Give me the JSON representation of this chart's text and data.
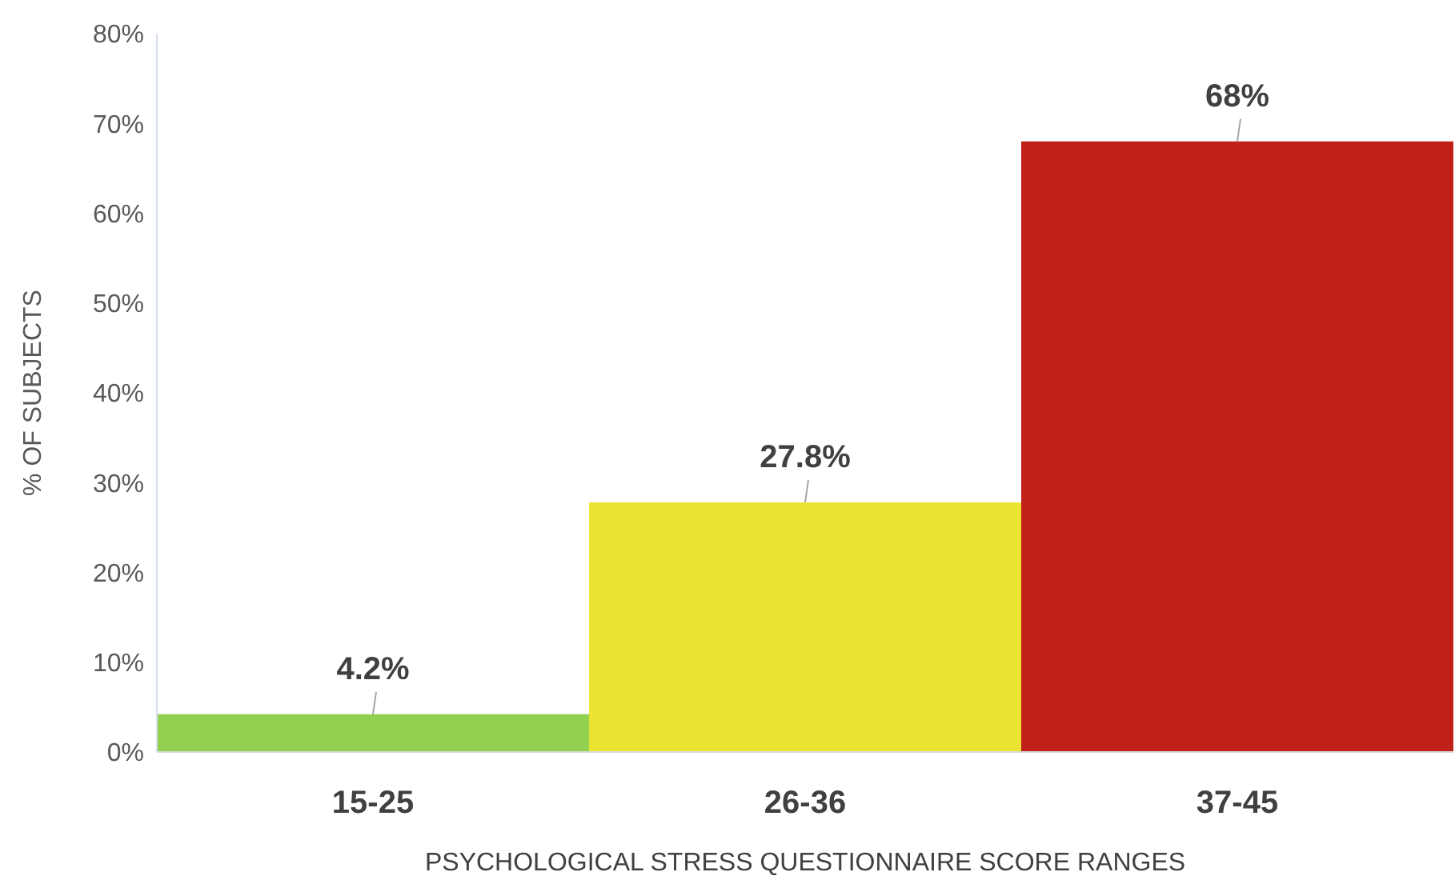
{
  "chart_data": {
    "type": "bar",
    "xlabel": "PSYCHOLOGICAL STRESS QUESTIONNAIRE SCORE RANGES",
    "ylabel": "% OF SUBJECTS",
    "categories": [
      "15-25",
      "26-36",
      "37-45"
    ],
    "values": [
      4.2,
      27.8,
      68
    ],
    "colors": [
      "#92d050",
      "#ebe332",
      "#c0221a"
    ],
    "value_labels": [
      "4.2%",
      "27.8%",
      "68%"
    ],
    "ylim": [
      0,
      80
    ],
    "yticks": [
      {
        "value": 0,
        "label": "0%"
      },
      {
        "value": 10,
        "label": "10%"
      },
      {
        "value": 20,
        "label": "20%"
      },
      {
        "value": 30,
        "label": "30%"
      },
      {
        "value": 40,
        "label": "40%"
      },
      {
        "value": 50,
        "label": "50%"
      },
      {
        "value": 60,
        "label": "60%"
      },
      {
        "value": 70,
        "label": "70%"
      },
      {
        "value": 80,
        "label": "80%"
      }
    ],
    "grid": false,
    "legend": false
  }
}
